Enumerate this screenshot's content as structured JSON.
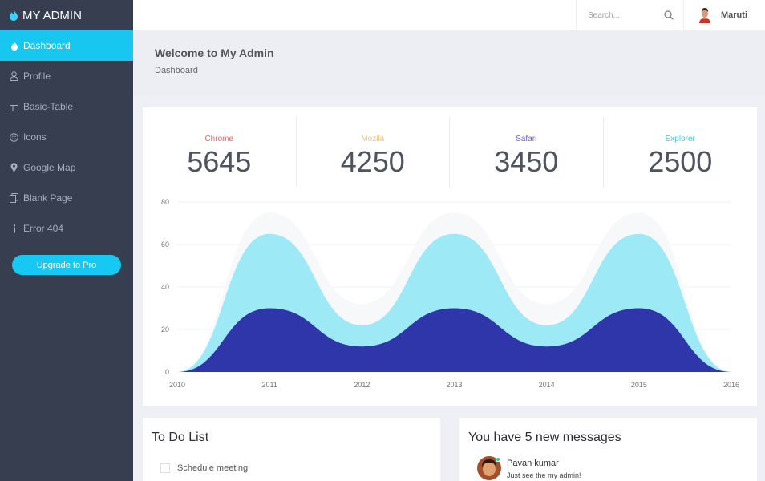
{
  "brand": {
    "name": "MY ADMIN"
  },
  "sidebar": {
    "items": [
      {
        "label": "Dashboard",
        "icon": "flame-icon",
        "active": true
      },
      {
        "label": "Profile",
        "icon": "user-icon"
      },
      {
        "label": "Basic-Table",
        "icon": "table-icon"
      },
      {
        "label": "Icons",
        "icon": "smile-icon"
      },
      {
        "label": "Google Map",
        "icon": "map-pin-icon"
      },
      {
        "label": "Blank Page",
        "icon": "pages-icon"
      },
      {
        "label": "Error 404",
        "icon": "info-icon"
      }
    ],
    "upgrade_label": "Upgrade to Pro"
  },
  "topbar": {
    "search_placeholder": "Search...",
    "user_name": "Maruti"
  },
  "page": {
    "title": "Welcome to My Admin",
    "breadcrumb": "Dashboard"
  },
  "stats": [
    {
      "label": "Chrome",
      "value": "5645",
      "color": "#f76060"
    },
    {
      "label": "Mozila",
      "value": "4250",
      "color": "#f8c16a"
    },
    {
      "label": "Safari",
      "value": "3450",
      "color": "#6e62c7"
    },
    {
      "label": "Explorer",
      "value": "2500",
      "color": "#3dcde8"
    }
  ],
  "chart_data": {
    "type": "area",
    "x": [
      "2010",
      "2011",
      "2012",
      "2013",
      "2014",
      "2015",
      "2016"
    ],
    "ylim": [
      0,
      80
    ],
    "yticks": [
      "0",
      "20",
      "40",
      "60",
      "80"
    ],
    "grid": true,
    "series": [
      {
        "values": [
          0,
          75,
          32,
          75,
          32,
          75,
          0
        ],
        "color": "#f7f8fa"
      },
      {
        "values": [
          0,
          65,
          22,
          65,
          22,
          65,
          0
        ],
        "color": "#9ee9f6"
      },
      {
        "values": [
          0,
          30,
          12,
          30,
          12,
          30,
          0
        ],
        "color": "#2f36a9"
      }
    ]
  },
  "todo": {
    "title": "To Do List",
    "items": [
      {
        "label": "Schedule meeting",
        "checked": false
      }
    ]
  },
  "messages": {
    "title": "You have 5 new messages",
    "items": [
      {
        "name": "Pavan kumar",
        "text": "Just see the my admin!"
      }
    ]
  }
}
